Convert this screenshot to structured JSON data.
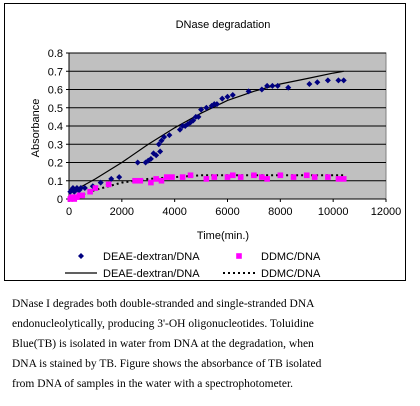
{
  "chart_data": {
    "type": "scatter",
    "title": "DNase degradation",
    "xlabel": "Time(min.)",
    "ylabel": "Absorbance",
    "xlim": [
      0,
      12000
    ],
    "ylim": [
      0,
      0.8
    ],
    "xticks": [
      "0",
      "2000",
      "4000",
      "6000",
      "8000",
      "10000",
      "12000"
    ],
    "yticks": [
      "0",
      "0.1",
      "0.2",
      "0.3",
      "0.4",
      "0.5",
      "0.6",
      "0.7",
      "0.8"
    ],
    "grid": "horizontal",
    "plot_background": "#c0c0c0",
    "legend_position": "bottom",
    "series": [
      {
        "name": "DEAE-dextran/DNA",
        "kind": "points",
        "marker": "diamond",
        "color": "#000080",
        "x": [
          50,
          100,
          150,
          200,
          250,
          300,
          350,
          400,
          450,
          600,
          900,
          1200,
          1500,
          1600,
          1900,
          2600,
          2900,
          3000,
          3100,
          3200,
          3300,
          3400,
          3450,
          3500,
          3600,
          3800,
          4200,
          4300,
          4400,
          4500,
          4600,
          4700,
          4800,
          4900,
          5000,
          5200,
          5400,
          5500,
          5600,
          5800,
          6000,
          6200,
          6800,
          7300,
          7500,
          7700,
          7900,
          8300,
          9100,
          9400,
          9800,
          10200,
          10400
        ],
        "y": [
          0.04,
          0.05,
          0.06,
          0.04,
          0.05,
          0.06,
          0.05,
          0.05,
          0.06,
          0.06,
          0.07,
          0.09,
          0.08,
          0.11,
          0.12,
          0.2,
          0.2,
          0.21,
          0.22,
          0.25,
          0.24,
          0.3,
          0.26,
          0.32,
          0.34,
          0.35,
          0.38,
          0.4,
          0.4,
          0.41,
          0.42,
          0.43,
          0.45,
          0.45,
          0.49,
          0.5,
          0.51,
          0.52,
          0.52,
          0.55,
          0.56,
          0.57,
          0.59,
          0.6,
          0.62,
          0.62,
          0.62,
          0.61,
          0.63,
          0.64,
          0.65,
          0.65,
          0.65
        ]
      },
      {
        "name": "DDMC/DNA",
        "kind": "points",
        "marker": "square",
        "color": "#ff00ff",
        "x": [
          50,
          100,
          200,
          300,
          400,
          500,
          800,
          1000,
          1500,
          2500,
          2700,
          3100,
          3300,
          3500,
          3700,
          3900,
          4300,
          4600,
          5200,
          5500,
          6000,
          6200,
          6500,
          7000,
          7300,
          7500,
          8000,
          8500,
          9000,
          9300,
          9800,
          10200,
          10400
        ],
        "y": [
          0.0,
          0.01,
          0.0,
          0.01,
          0.02,
          0.02,
          0.04,
          0.06,
          0.08,
          0.1,
          0.1,
          0.09,
          0.11,
          0.1,
          0.12,
          0.12,
          0.12,
          0.13,
          0.11,
          0.12,
          0.12,
          0.13,
          0.12,
          0.13,
          0.12,
          0.11,
          0.13,
          0.12,
          0.13,
          0.12,
          0.12,
          0.11,
          0.11
        ]
      },
      {
        "name": "DEAE-dextran/DNA",
        "kind": "line",
        "style": "solid",
        "color": "#000000",
        "x": [
          0,
          1000,
          2000,
          3000,
          4000,
          5000,
          6000,
          7000,
          8000,
          9000,
          10000,
          10400
        ],
        "y": [
          0.03,
          0.11,
          0.2,
          0.3,
          0.39,
          0.47,
          0.54,
          0.59,
          0.63,
          0.66,
          0.69,
          0.7
        ]
      },
      {
        "name": "DDMC/DNA",
        "kind": "line",
        "style": "dotted",
        "color": "#000000",
        "x": [
          0,
          1000,
          2000,
          3000,
          4000,
          5000,
          6000,
          7000,
          8000,
          9000,
          10000,
          10400
        ],
        "y": [
          0.0,
          0.05,
          0.09,
          0.11,
          0.12,
          0.13,
          0.13,
          0.13,
          0.13,
          0.13,
          0.13,
          0.13
        ]
      }
    ]
  },
  "caption": {
    "lines": [
      "DNase I degrades both double-stranded and single-stranded DNA",
      "endonucleolytically, producing 3'-OH oligonucleotides.   Toluidine",
      "Blue(TB) is isolated in water from DNA at the degradation, when",
      "DNA is stained by TB.   Figure shows the absorbance of TB isolated",
      "from DNA of samples in the water with a spectrophotometer."
    ]
  }
}
